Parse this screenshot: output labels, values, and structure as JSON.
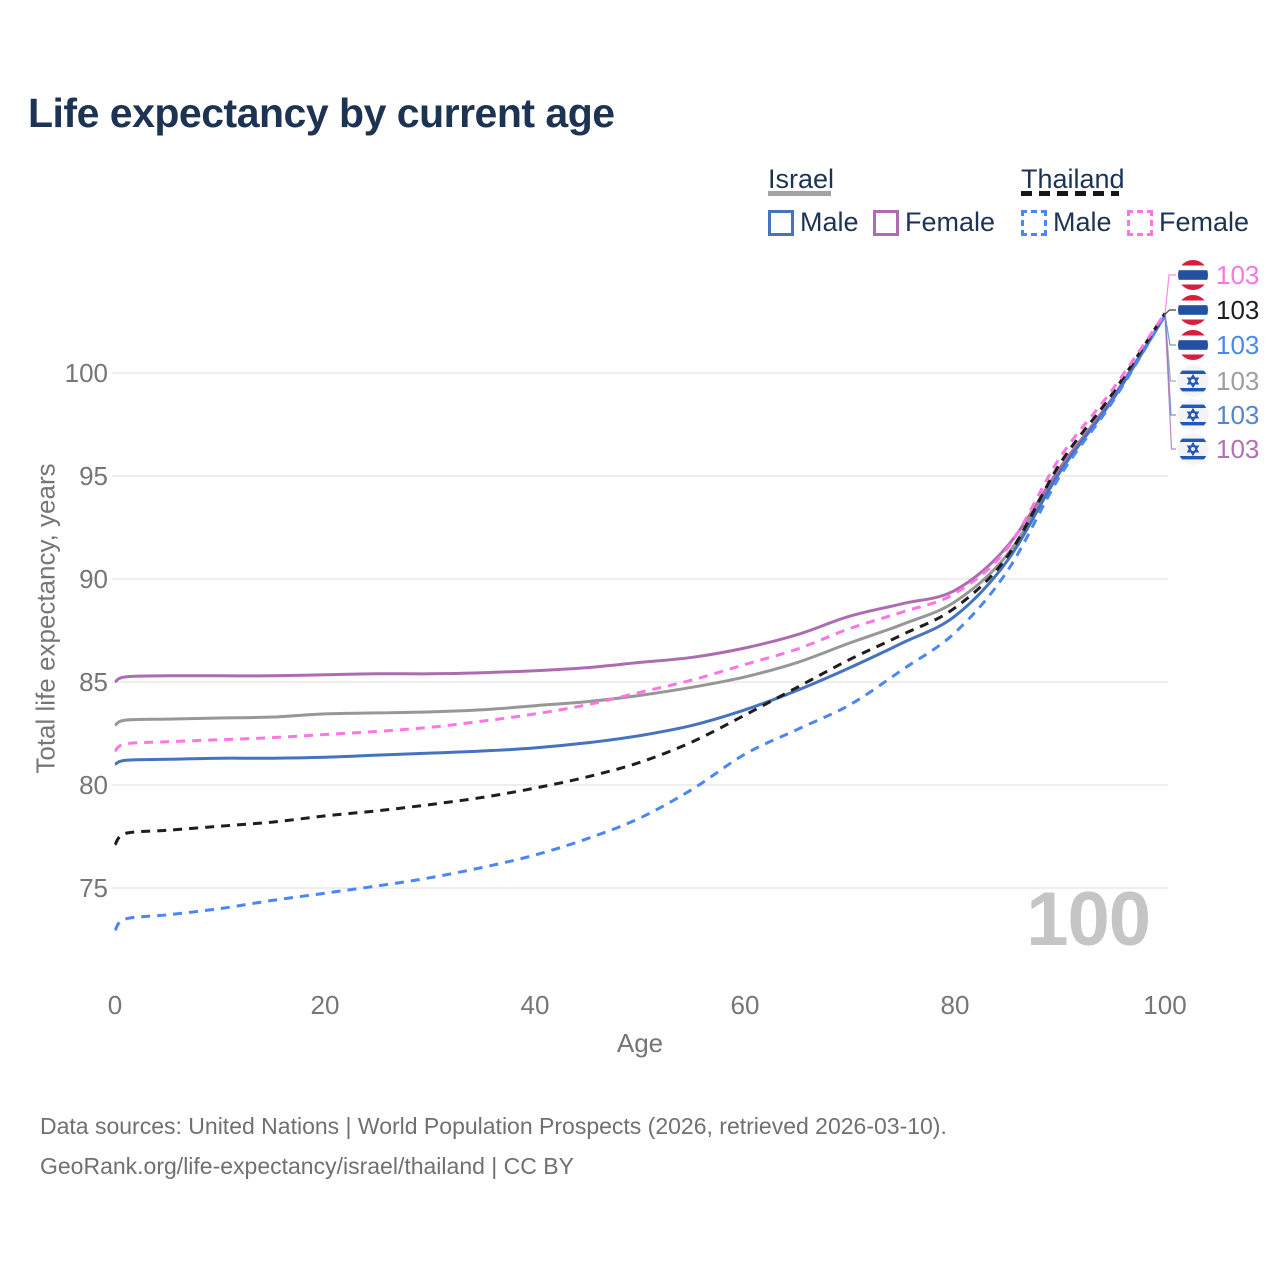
{
  "title": "Life expectancy by current age",
  "legend": {
    "israel": {
      "label": "Israel",
      "male_label": "Male",
      "female_label": "Female"
    },
    "thailand": {
      "label": "Thailand",
      "male_label": "Male",
      "female_label": "Female"
    }
  },
  "axes": {
    "y": {
      "title": "Total life expectancy, years",
      "ticks": [
        "100",
        "95",
        "90",
        "85",
        "80",
        "75"
      ]
    },
    "x": {
      "title": "Age",
      "ticks": [
        "0",
        "20",
        "40",
        "60",
        "80",
        "100"
      ]
    }
  },
  "end_labels": [
    {
      "series": "Thailand Female",
      "flag": "thailand",
      "value": "103",
      "color": "#fb76e2"
    },
    {
      "series": "Thailand",
      "flag": "thailand",
      "value": "103",
      "color": "#1e1e1e"
    },
    {
      "series": "Thailand Male",
      "flag": "thailand",
      "value": "103",
      "color": "#4b87f2"
    },
    {
      "series": "Israel",
      "flag": "israel",
      "value": "103",
      "color": "#9e9e9e"
    },
    {
      "series": "Israel Male",
      "flag": "israel",
      "value": "103",
      "color": "#5585cf"
    },
    {
      "series": "Israel Female",
      "flag": "israel",
      "value": "103",
      "color": "#b171b3"
    }
  ],
  "watermark": {
    "value": "100"
  },
  "footer": {
    "line1": "Data sources: United Nations | World Population Prospects (2026, retrieved 2026-03-10).",
    "line2": "GeoRank.org/life-expectancy/israel/thailand | CC BY"
  },
  "colors": {
    "title_text": "#1d3354",
    "axis_text": "#767676",
    "gridline": "#e8e8e8",
    "israel_male": "#4573bd",
    "israel_female": "#ad6cb0",
    "israel_all": "#979797",
    "thailand_male": "#4b87f2",
    "thailand_female": "#fb76e2",
    "thailand_all": "#1e1e1e",
    "watermark": "#c5c5c5"
  },
  "chart_data": {
    "type": "line",
    "title": "Life expectancy by current age",
    "xlabel": "Age",
    "ylabel": "Total life expectancy, years",
    "xlim": [
      0,
      100
    ],
    "ylim": [
      72,
      104
    ],
    "grid": "horizontal",
    "legend_position": "top-right",
    "x": [
      0,
      1,
      5,
      10,
      15,
      20,
      25,
      30,
      35,
      40,
      45,
      50,
      55,
      60,
      65,
      70,
      75,
      80,
      85,
      90,
      95,
      100
    ],
    "series": [
      {
        "name": "Israel",
        "country": "Israel",
        "sex": "both",
        "style": "solid",
        "color": "#979797",
        "values": [
          82.9,
          83.15,
          83.2,
          83.25,
          83.3,
          83.45,
          83.5,
          83.55,
          83.65,
          83.85,
          84.05,
          84.35,
          84.75,
          85.25,
          85.95,
          86.9,
          87.8,
          88.9,
          91.2,
          95.3,
          98.7,
          102.8
        ]
      },
      {
        "name": "Israel Female",
        "country": "Israel",
        "sex": "female",
        "style": "solid",
        "color": "#ad6cb0",
        "values": [
          85.0,
          85.25,
          85.3,
          85.3,
          85.3,
          85.35,
          85.4,
          85.4,
          85.45,
          85.55,
          85.7,
          85.95,
          86.2,
          86.65,
          87.3,
          88.2,
          88.8,
          89.45,
          91.6,
          95.4,
          98.8,
          102.8
        ]
      },
      {
        "name": "Israel Male",
        "country": "Israel",
        "sex": "male",
        "style": "solid",
        "color": "#4573bd",
        "values": [
          81.0,
          81.2,
          81.25,
          81.3,
          81.3,
          81.35,
          81.45,
          81.55,
          81.65,
          81.8,
          82.05,
          82.4,
          82.9,
          83.65,
          84.6,
          85.7,
          86.9,
          88.2,
          90.9,
          95.2,
          98.7,
          102.8
        ]
      },
      {
        "name": "Thailand Male",
        "country": "Thailand",
        "sex": "male",
        "style": "dashed",
        "color": "#4b87f2",
        "values": [
          72.95,
          73.5,
          73.7,
          74.0,
          74.4,
          74.75,
          75.1,
          75.5,
          76.0,
          76.6,
          77.4,
          78.4,
          79.8,
          81.5,
          82.7,
          83.9,
          85.6,
          87.4,
          90.4,
          95.0,
          98.6,
          102.8
        ]
      },
      {
        "name": "Thailand",
        "country": "Thailand",
        "sex": "both",
        "style": "dashed",
        "color": "#1e1e1e",
        "values": [
          77.1,
          77.65,
          77.8,
          78.0,
          78.2,
          78.5,
          78.75,
          79.05,
          79.4,
          79.85,
          80.4,
          81.1,
          82.1,
          83.4,
          84.75,
          86.1,
          87.3,
          88.6,
          91.1,
          95.6,
          99.0,
          102.9
        ]
      },
      {
        "name": "Thailand Female",
        "country": "Thailand",
        "sex": "female",
        "style": "dashed",
        "color": "#fb76e2",
        "values": [
          81.65,
          82.0,
          82.1,
          82.2,
          82.3,
          82.45,
          82.6,
          82.8,
          83.1,
          83.45,
          83.9,
          84.5,
          85.1,
          85.85,
          86.6,
          87.6,
          88.4,
          89.3,
          91.5,
          95.9,
          99.2,
          102.9
        ]
      }
    ]
  }
}
